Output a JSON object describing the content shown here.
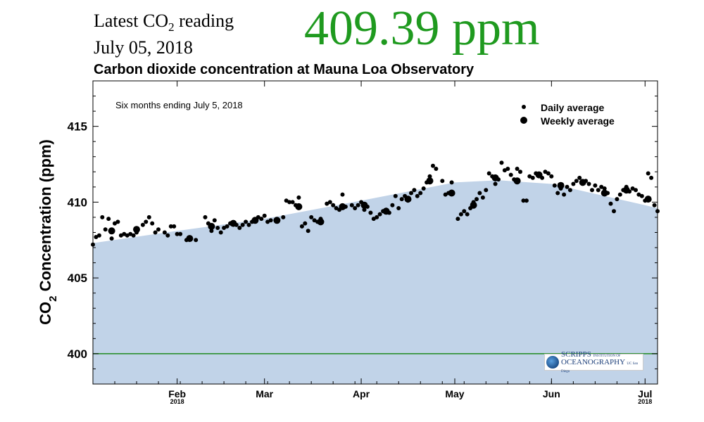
{
  "header": {
    "latest_prefix": "Latest CO",
    "latest_sub": "2",
    "latest_suffix": " reading",
    "date": "July 05, 2018",
    "reading": "409.39 ppm"
  },
  "logo": {
    "line1_big": "SCRIPPS",
    "line1_small": "INSTITUTION OF",
    "line2_big": "OCEANOGRAPHY",
    "line2_small": "UC San Diego"
  },
  "colors": {
    "reading": "#1f9a1f",
    "area_fill": "#c1d3e8",
    "reference_line": "#1f8a1f",
    "points": "#000000"
  },
  "chart_data": {
    "type": "scatter",
    "title": "Carbon dioxide concentration at Mauna Loa Observatory",
    "annotation": "Six months ending July 5, 2018",
    "ylabel_prefix": "CO",
    "ylabel_sub": "2",
    "ylabel_suffix": " Concentration (ppm)",
    "xlim": [
      "2018-01-05",
      "2018-07-05"
    ],
    "ylim": [
      398,
      418
    ],
    "y_ticks": [
      400,
      405,
      410,
      415
    ],
    "x_ticks": [
      {
        "date": "2018-02-01",
        "label": "Feb",
        "sub": "2018"
      },
      {
        "date": "2018-03-01",
        "label": "Mar",
        "sub": ""
      },
      {
        "date": "2018-04-01",
        "label": "Apr",
        "sub": ""
      },
      {
        "date": "2018-05-01",
        "label": "May",
        "sub": ""
      },
      {
        "date": "2018-06-01",
        "label": "Jun",
        "sub": ""
      },
      {
        "date": "2018-07-01",
        "label": "Jul",
        "sub": "2018"
      }
    ],
    "reference_line": 400,
    "legend": {
      "position": "top-right",
      "items": [
        {
          "label": "Daily average",
          "marker": "small"
        },
        {
          "label": "Weekly average",
          "marker": "large"
        }
      ]
    },
    "trend": [
      {
        "date": "2018-01-05",
        "value": 407.3
      },
      {
        "date": "2018-02-01",
        "value": 408.1
      },
      {
        "date": "2018-03-01",
        "value": 408.9
      },
      {
        "date": "2018-04-01",
        "value": 410.1
      },
      {
        "date": "2018-05-01",
        "value": 411.3
      },
      {
        "date": "2018-05-15",
        "value": 411.45
      },
      {
        "date": "2018-06-01",
        "value": 411.2
      },
      {
        "date": "2018-07-01",
        "value": 409.8
      },
      {
        "date": "2018-07-05",
        "value": 409.6
      }
    ],
    "series": [
      {
        "name": "Daily average",
        "points": [
          {
            "date": "2018-01-05",
            "value": 407.2
          },
          {
            "date": "2018-01-06",
            "value": 407.7
          },
          {
            "date": "2018-01-07",
            "value": 407.8
          },
          {
            "date": "2018-01-08",
            "value": 409.0
          },
          {
            "date": "2018-01-09",
            "value": 408.2
          },
          {
            "date": "2018-01-10",
            "value": 408.9
          },
          {
            "date": "2018-01-11",
            "value": 407.6
          },
          {
            "date": "2018-01-12",
            "value": 408.6
          },
          {
            "date": "2018-01-13",
            "value": 408.7
          },
          {
            "date": "2018-01-14",
            "value": 407.8
          },
          {
            "date": "2018-01-15",
            "value": 407.9
          },
          {
            "date": "2018-01-16",
            "value": 407.8
          },
          {
            "date": "2018-01-17",
            "value": 407.9
          },
          {
            "date": "2018-01-18",
            "value": 407.8
          },
          {
            "date": "2018-01-19",
            "value": 408.0
          },
          {
            "date": "2018-01-21",
            "value": 408.5
          },
          {
            "date": "2018-01-22",
            "value": 408.7
          },
          {
            "date": "2018-01-23",
            "value": 409.0
          },
          {
            "date": "2018-01-24",
            "value": 408.6
          },
          {
            "date": "2018-01-25",
            "value": 408.0
          },
          {
            "date": "2018-01-26",
            "value": 408.2
          },
          {
            "date": "2018-01-28",
            "value": 408.0
          },
          {
            "date": "2018-01-29",
            "value": 407.8
          },
          {
            "date": "2018-01-30",
            "value": 408.4
          },
          {
            "date": "2018-01-31",
            "value": 408.4
          },
          {
            "date": "2018-02-01",
            "value": 407.9
          },
          {
            "date": "2018-02-02",
            "value": 407.9
          },
          {
            "date": "2018-02-04",
            "value": 407.5
          },
          {
            "date": "2018-02-05",
            "value": 407.6
          },
          {
            "date": "2018-02-07",
            "value": 407.5
          },
          {
            "date": "2018-02-10",
            "value": 409.0
          },
          {
            "date": "2018-02-11",
            "value": 408.6
          },
          {
            "date": "2018-02-12",
            "value": 408.1
          },
          {
            "date": "2018-02-13",
            "value": 408.8
          },
          {
            "date": "2018-02-14",
            "value": 408.3
          },
          {
            "date": "2018-02-15",
            "value": 408.0
          },
          {
            "date": "2018-02-16",
            "value": 408.3
          },
          {
            "date": "2018-02-17",
            "value": 408.4
          },
          {
            "date": "2018-02-18",
            "value": 408.6
          },
          {
            "date": "2018-02-19",
            "value": 408.6
          },
          {
            "date": "2018-02-20",
            "value": 408.5
          },
          {
            "date": "2018-02-21",
            "value": 408.3
          },
          {
            "date": "2018-02-22",
            "value": 408.5
          },
          {
            "date": "2018-02-23",
            "value": 408.7
          },
          {
            "date": "2018-02-24",
            "value": 408.5
          },
          {
            "date": "2018-02-25",
            "value": 408.7
          },
          {
            "date": "2018-02-26",
            "value": 408.8
          },
          {
            "date": "2018-02-27",
            "value": 409.0
          },
          {
            "date": "2018-02-28",
            "value": 408.9
          },
          {
            "date": "2018-03-01",
            "value": 409.1
          },
          {
            "date": "2018-03-02",
            "value": 408.7
          },
          {
            "date": "2018-03-03",
            "value": 408.8
          },
          {
            "date": "2018-03-05",
            "value": 408.8
          },
          {
            "date": "2018-03-07",
            "value": 409.0
          },
          {
            "date": "2018-03-08",
            "value": 410.1
          },
          {
            "date": "2018-03-09",
            "value": 410.0
          },
          {
            "date": "2018-03-10",
            "value": 410.0
          },
          {
            "date": "2018-03-11",
            "value": 409.8
          },
          {
            "date": "2018-03-12",
            "value": 410.3
          },
          {
            "date": "2018-03-13",
            "value": 408.4
          },
          {
            "date": "2018-03-14",
            "value": 408.6
          },
          {
            "date": "2018-03-15",
            "value": 408.1
          },
          {
            "date": "2018-03-16",
            "value": 409.0
          },
          {
            "date": "2018-03-17",
            "value": 408.8
          },
          {
            "date": "2018-03-18",
            "value": 408.7
          },
          {
            "date": "2018-03-19",
            "value": 408.9
          },
          {
            "date": "2018-03-21",
            "value": 409.9
          },
          {
            "date": "2018-03-22",
            "value": 410.0
          },
          {
            "date": "2018-03-23",
            "value": 409.8
          },
          {
            "date": "2018-03-24",
            "value": 409.6
          },
          {
            "date": "2018-03-25",
            "value": 409.5
          },
          {
            "date": "2018-03-26",
            "value": 410.5
          },
          {
            "date": "2018-03-27",
            "value": 409.7
          },
          {
            "date": "2018-03-29",
            "value": 409.8
          },
          {
            "date": "2018-03-30",
            "value": 409.6
          },
          {
            "date": "2018-03-31",
            "value": 409.8
          },
          {
            "date": "2018-04-01",
            "value": 410.0
          },
          {
            "date": "2018-04-02",
            "value": 409.5
          },
          {
            "date": "2018-04-03",
            "value": 409.7
          },
          {
            "date": "2018-04-04",
            "value": 409.3
          },
          {
            "date": "2018-04-05",
            "value": 408.9
          },
          {
            "date": "2018-04-06",
            "value": 409.0
          },
          {
            "date": "2018-04-07",
            "value": 409.2
          },
          {
            "date": "2018-04-08",
            "value": 409.4
          },
          {
            "date": "2018-04-09",
            "value": 409.5
          },
          {
            "date": "2018-04-10",
            "value": 409.3
          },
          {
            "date": "2018-04-11",
            "value": 409.8
          },
          {
            "date": "2018-04-12",
            "value": 410.4
          },
          {
            "date": "2018-04-13",
            "value": 409.6
          },
          {
            "date": "2018-04-14",
            "value": 410.2
          },
          {
            "date": "2018-04-15",
            "value": 410.4
          },
          {
            "date": "2018-04-16",
            "value": 410.1
          },
          {
            "date": "2018-04-17",
            "value": 410.6
          },
          {
            "date": "2018-04-18",
            "value": 410.8
          },
          {
            "date": "2018-04-19",
            "value": 410.4
          },
          {
            "date": "2018-04-20",
            "value": 410.6
          },
          {
            "date": "2018-04-21",
            "value": 410.9
          },
          {
            "date": "2018-04-22",
            "value": 411.3
          },
          {
            "date": "2018-04-23",
            "value": 411.7
          },
          {
            "date": "2018-04-24",
            "value": 412.4
          },
          {
            "date": "2018-04-25",
            "value": 412.2
          },
          {
            "date": "2018-04-27",
            "value": 411.4
          },
          {
            "date": "2018-04-28",
            "value": 410.5
          },
          {
            "date": "2018-04-29",
            "value": 410.6
          },
          {
            "date": "2018-04-30",
            "value": 411.3
          },
          {
            "date": "2018-05-02",
            "value": 408.9
          },
          {
            "date": "2018-05-03",
            "value": 409.2
          },
          {
            "date": "2018-05-04",
            "value": 409.4
          },
          {
            "date": "2018-05-05",
            "value": 409.2
          },
          {
            "date": "2018-05-06",
            "value": 409.6
          },
          {
            "date": "2018-05-07",
            "value": 410.0
          },
          {
            "date": "2018-05-08",
            "value": 410.2
          },
          {
            "date": "2018-05-09",
            "value": 410.6
          },
          {
            "date": "2018-05-10",
            "value": 410.3
          },
          {
            "date": "2018-05-11",
            "value": 410.8
          },
          {
            "date": "2018-05-12",
            "value": 411.9
          },
          {
            "date": "2018-05-13",
            "value": 411.7
          },
          {
            "date": "2018-05-14",
            "value": 411.2
          },
          {
            "date": "2018-05-15",
            "value": 411.5
          },
          {
            "date": "2018-05-16",
            "value": 412.6
          },
          {
            "date": "2018-05-17",
            "value": 412.1
          },
          {
            "date": "2018-05-18",
            "value": 412.2
          },
          {
            "date": "2018-05-19",
            "value": 411.8
          },
          {
            "date": "2018-05-20",
            "value": 411.5
          },
          {
            "date": "2018-05-21",
            "value": 412.2
          },
          {
            "date": "2018-05-22",
            "value": 412.0
          },
          {
            "date": "2018-05-23",
            "value": 410.1
          },
          {
            "date": "2018-05-24",
            "value": 410.1
          },
          {
            "date": "2018-05-25",
            "value": 411.7
          },
          {
            "date": "2018-05-26",
            "value": 411.6
          },
          {
            "date": "2018-05-27",
            "value": 411.9
          },
          {
            "date": "2018-05-28",
            "value": 411.8
          },
          {
            "date": "2018-05-29",
            "value": 411.6
          },
          {
            "date": "2018-05-30",
            "value": 412.0
          },
          {
            "date": "2018-05-31",
            "value": 411.9
          },
          {
            "date": "2018-06-01",
            "value": 411.7
          },
          {
            "date": "2018-06-02",
            "value": 411.1
          },
          {
            "date": "2018-06-03",
            "value": 410.6
          },
          {
            "date": "2018-06-04",
            "value": 410.9
          },
          {
            "date": "2018-06-05",
            "value": 410.5
          },
          {
            "date": "2018-06-06",
            "value": 411.0
          },
          {
            "date": "2018-06-07",
            "value": 410.8
          },
          {
            "date": "2018-06-08",
            "value": 411.2
          },
          {
            "date": "2018-06-09",
            "value": 411.4
          },
          {
            "date": "2018-06-10",
            "value": 411.6
          },
          {
            "date": "2018-06-11",
            "value": 411.3
          },
          {
            "date": "2018-06-12",
            "value": 411.4
          },
          {
            "date": "2018-06-13",
            "value": 411.2
          },
          {
            "date": "2018-06-14",
            "value": 410.8
          },
          {
            "date": "2018-06-15",
            "value": 411.1
          },
          {
            "date": "2018-06-16",
            "value": 410.8
          },
          {
            "date": "2018-06-17",
            "value": 411.0
          },
          {
            "date": "2018-06-18",
            "value": 410.9
          },
          {
            "date": "2018-06-19",
            "value": 410.6
          },
          {
            "date": "2018-06-20",
            "value": 409.9
          },
          {
            "date": "2018-06-21",
            "value": 409.4
          },
          {
            "date": "2018-06-22",
            "value": 410.2
          },
          {
            "date": "2018-06-23",
            "value": 410.5
          },
          {
            "date": "2018-06-24",
            "value": 410.8
          },
          {
            "date": "2018-06-25",
            "value": 411.0
          },
          {
            "date": "2018-06-26",
            "value": 410.7
          },
          {
            "date": "2018-06-27",
            "value": 410.9
          },
          {
            "date": "2018-06-28",
            "value": 410.8
          },
          {
            "date": "2018-06-29",
            "value": 410.5
          },
          {
            "date": "2018-06-30",
            "value": 410.4
          },
          {
            "date": "2018-07-01",
            "value": 410.1
          },
          {
            "date": "2018-07-02",
            "value": 411.9
          },
          {
            "date": "2018-07-03",
            "value": 411.6
          },
          {
            "date": "2018-07-04",
            "value": 409.8
          },
          {
            "date": "2018-07-05",
            "value": 409.4
          }
        ]
      },
      {
        "name": "Weekly average",
        "points": [
          {
            "date": "2018-01-11",
            "value": 408.1
          },
          {
            "date": "2018-01-19",
            "value": 408.2
          },
          {
            "date": "2018-02-05",
            "value": 407.6
          },
          {
            "date": "2018-02-12",
            "value": 408.4
          },
          {
            "date": "2018-02-19",
            "value": 408.6
          },
          {
            "date": "2018-02-26",
            "value": 408.8
          },
          {
            "date": "2018-03-05",
            "value": 408.8
          },
          {
            "date": "2018-03-12",
            "value": 409.7
          },
          {
            "date": "2018-03-19",
            "value": 408.7
          },
          {
            "date": "2018-03-26",
            "value": 409.7
          },
          {
            "date": "2018-04-02",
            "value": 409.8
          },
          {
            "date": "2018-04-09",
            "value": 409.4
          },
          {
            "date": "2018-04-16",
            "value": 410.2
          },
          {
            "date": "2018-04-23",
            "value": 411.4
          },
          {
            "date": "2018-04-30",
            "value": 410.6
          },
          {
            "date": "2018-05-07",
            "value": 409.8
          },
          {
            "date": "2018-05-14",
            "value": 411.6
          },
          {
            "date": "2018-05-21",
            "value": 411.4
          },
          {
            "date": "2018-05-28",
            "value": 411.8
          },
          {
            "date": "2018-06-04",
            "value": 411.1
          },
          {
            "date": "2018-06-11",
            "value": 411.3
          },
          {
            "date": "2018-06-18",
            "value": 410.6
          },
          {
            "date": "2018-06-25",
            "value": 410.8
          },
          {
            "date": "2018-07-02",
            "value": 410.2
          }
        ]
      }
    ]
  }
}
